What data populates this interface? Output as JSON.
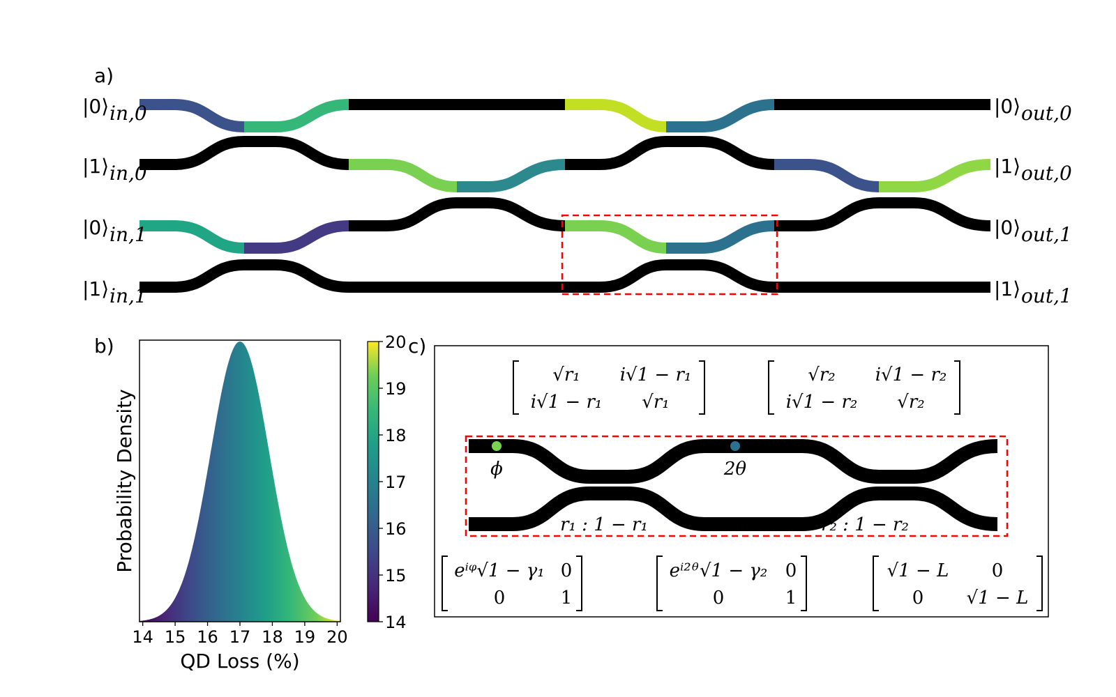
{
  "panels": {
    "a": "a)",
    "b": "b)",
    "c": "c)"
  },
  "circuit": {
    "inputs": [
      {
        "ket": "|0⟩",
        "sub": "in,0"
      },
      {
        "ket": "|1⟩",
        "sub": "in,0"
      },
      {
        "ket": "|0⟩",
        "sub": "in,1"
      },
      {
        "ket": "|1⟩",
        "sub": "in,1"
      }
    ],
    "outputs": [
      {
        "ket": "|0⟩",
        "sub": "out,0"
      },
      {
        "ket": "|1⟩",
        "sub": "out,0"
      },
      {
        "ket": "|0⟩",
        "sub": "out,1"
      },
      {
        "ket": "|1⟩",
        "sub": "out,1"
      }
    ],
    "colors": {
      "waveguide": "#000000",
      "highlight_box": "#ff0000",
      "c15": "#3b528b",
      "c16": "#2c728e",
      "c165": "#21918c",
      "c17": "#28ae80",
      "c175": "#5ec962",
      "c18": "#7ad151",
      "c19": "#addc30",
      "c195": "#c2df23",
      "c14": "#482878",
      "c145": "#443983"
    }
  },
  "chart_data": {
    "type": "area",
    "title": "",
    "xlabel": "QD Loss (%)",
    "ylabel": "Probability Density",
    "xlim": [
      13.9,
      20.1
    ],
    "xticks": [
      "14",
      "15",
      "16",
      "17",
      "18",
      "19",
      "20"
    ],
    "distribution": {
      "mean": 17.0,
      "std": 0.9
    },
    "colorbar": {
      "ticks": [
        "14",
        "15",
        "16",
        "17",
        "18",
        "19",
        "20"
      ],
      "range": [
        14,
        20
      ],
      "colormap": "viridis"
    }
  },
  "detail": {
    "phi_label": "ϕ",
    "theta_label": "2θ",
    "ratio1": "r₁ : 1 − r₁",
    "ratio2": "r₂ : 1 − r₂",
    "phase_dot_colors": {
      "phi": "#7ad151",
      "theta": "#2c728e"
    },
    "bs1_matrix": [
      [
        "√r₁",
        "i√1 − r₁"
      ],
      [
        "i√1 − r₁",
        "√r₁"
      ]
    ],
    "bs2_matrix": [
      [
        "√r₂",
        "i√1 − r₂"
      ],
      [
        "i√1 − r₂",
        "√r₂"
      ]
    ],
    "phase1_matrix": [
      [
        "eⁱᵠ√1 − γ₁",
        "0"
      ],
      [
        "0",
        "1"
      ]
    ],
    "phase2_matrix": [
      [
        "eⁱ²ᶿ√1 − γ₂",
        "0"
      ],
      [
        "0",
        "1"
      ]
    ],
    "loss_matrix": [
      [
        "√1 − L",
        "0"
      ],
      [
        "0",
        "√1 − L"
      ]
    ]
  }
}
